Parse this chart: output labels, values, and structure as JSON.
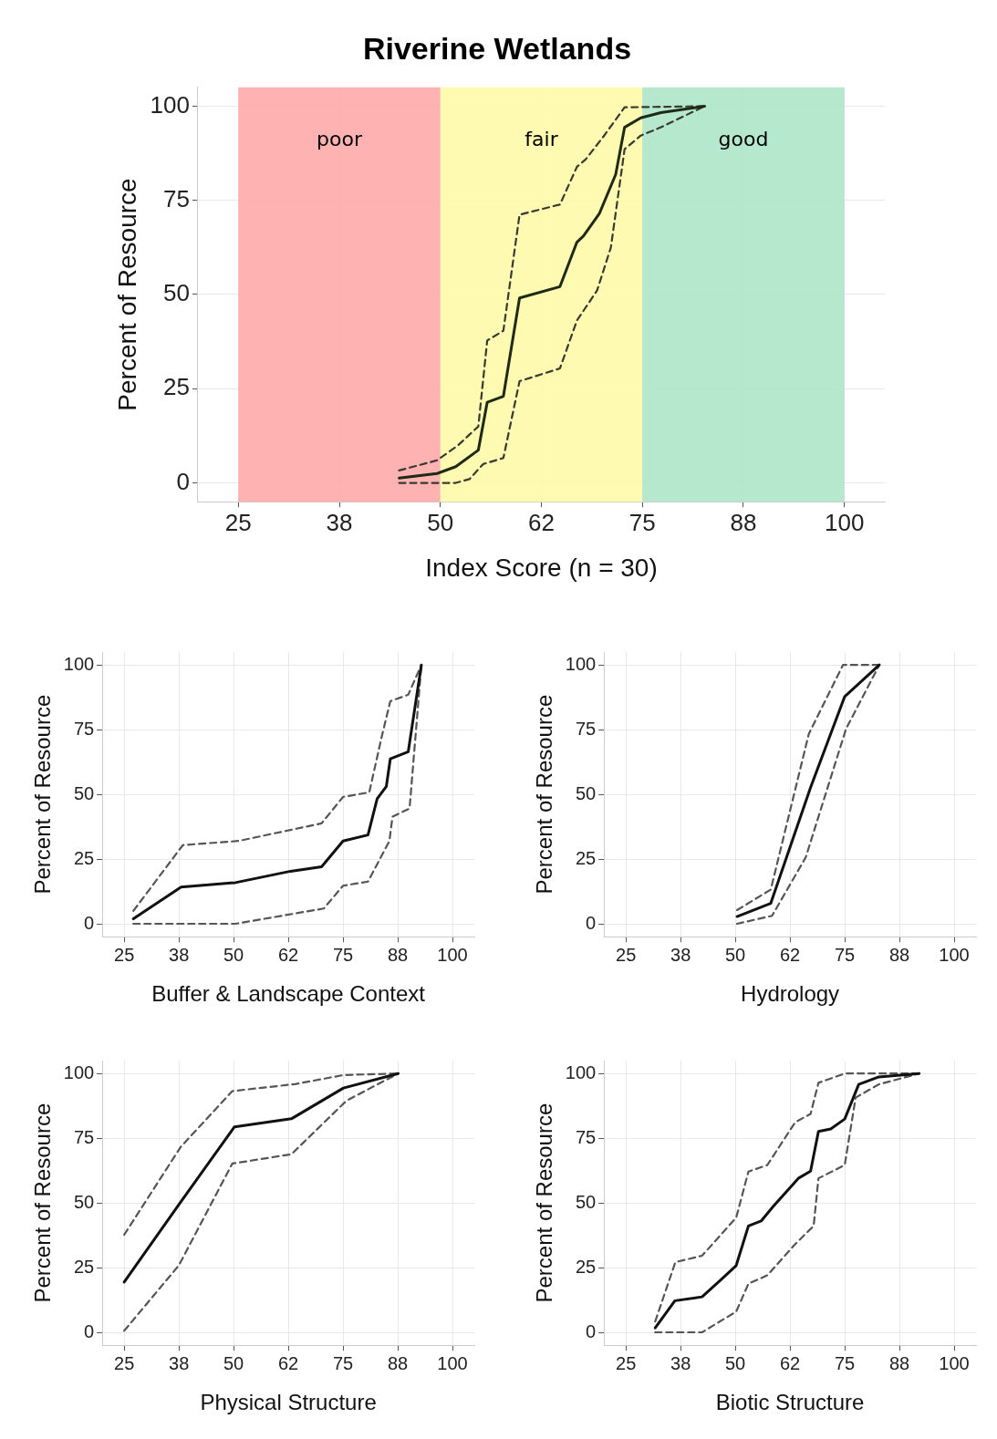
{
  "chart_data": [
    {
      "type": "line",
      "title": "Riverine Wetlands",
      "xlabel": "Index Score (n = 30)",
      "ylabel": "Percent of Resource",
      "xlim": [
        20,
        105
      ],
      "ylim": [
        -5,
        105
      ],
      "xticks": [
        25,
        {
          "value": 37.5,
          "label": "38"
        },
        50,
        {
          "value": 62.5,
          "label": "62"
        },
        75,
        {
          "value": 87.5,
          "label": "88"
        },
        100
      ],
      "yticks": [
        0,
        25,
        50,
        75,
        100
      ],
      "grid": true,
      "bands": [
        {
          "axis": "x",
          "from": 25,
          "to": 50,
          "label": "poor",
          "color": "#ffaaaa"
        },
        {
          "axis": "x",
          "from": 50,
          "to": 75,
          "label": "fair",
          "color": "#fffaaa"
        },
        {
          "axis": "x",
          "from": 75,
          "to": 100,
          "label": "good",
          "color": "#aee5c8"
        }
      ],
      "series": [
        {
          "color": "#1e2a14",
          "line_style": "solid",
          "x": [
            44.9,
            49.6,
            51.9,
            54.7,
            55.8,
            57.8,
            59.8,
            64.8,
            66.9,
            67.7,
            69.7,
            71.7,
            72.8,
            74.8,
            77.3,
            82.7
          ],
          "values": [
            1.3,
            2.5,
            4.3,
            8.7,
            21.4,
            23,
            49.1,
            52.1,
            63.9,
            65.5,
            71.6,
            81.9,
            94.4,
            96.9,
            98.3,
            100
          ]
        },
        {
          "color": "#3a3a30",
          "line_style": "dashed",
          "x": [
            44.9,
            49.6,
            52.2,
            54.7,
            55.8,
            57.8,
            59.8,
            64.8,
            66.9,
            68.0,
            70.2,
            72.8,
            82.7
          ],
          "values": [
            3.3,
            6,
            10,
            15,
            37.8,
            40.4,
            71.2,
            73.9,
            83.9,
            85.9,
            92,
            99.7,
            100
          ]
        },
        {
          "color": "#3a3a30",
          "line_style": "dashed",
          "x": [
            44.9,
            51.9,
            53.6,
            55.3,
            57.8,
            59.8,
            64.8,
            66.9,
            69.4,
            71.1,
            72.8,
            74.8,
            77.3,
            82.7
          ],
          "values": [
            0,
            0,
            1,
            5,
            6.6,
            27,
            30.4,
            43.1,
            51.1,
            62.5,
            88.6,
            92.2,
            94.4,
            100
          ]
        }
      ]
    },
    {
      "type": "line",
      "xlabel": "Buffer & Landscape Context",
      "ylabel": "Percent of Resource",
      "xlim": [
        20,
        105
      ],
      "ylim": [
        -5,
        105
      ],
      "xticks": [
        25,
        {
          "value": 37.5,
          "label": "38"
        },
        50,
        {
          "value": 62.5,
          "label": "62"
        },
        75,
        {
          "value": 87.5,
          "label": "88"
        },
        100
      ],
      "yticks": [
        0,
        25,
        50,
        75,
        100
      ],
      "grid": true,
      "series": [
        {
          "color": "#111111",
          "line_style": "solid",
          "x": [
            27.1,
            38.0,
            50.4,
            63.0,
            70.1,
            75.0,
            80.7,
            82.8,
            84.9,
            85.8,
            89.9,
            92.9
          ],
          "values": [
            1.9,
            14.2,
            15.9,
            20.3,
            22,
            32,
            34.3,
            48.3,
            53.1,
            63.7,
            66.5,
            100
          ]
        },
        {
          "color": "#555555",
          "line_style": "dashed",
          "x": [
            27.1,
            38.4,
            51.1,
            70.1,
            75.0,
            81.0,
            83.8,
            85.8,
            89.9,
            92.9
          ],
          "values": [
            5,
            30.4,
            32,
            38.8,
            49,
            50.8,
            72,
            86,
            88.5,
            100
          ]
        },
        {
          "color": "#555555",
          "line_style": "dashed",
          "x": [
            27.1,
            50.4,
            70.6,
            75.0,
            80.7,
            85.6,
            86.3,
            90.2,
            92.9
          ],
          "values": [
            0,
            0,
            5.9,
            14.7,
            16.3,
            32,
            41.4,
            44.5,
            100
          ]
        }
      ]
    },
    {
      "type": "line",
      "xlabel": "Hydrology",
      "ylabel": "Percent of Resource",
      "xlim": [
        20,
        105
      ],
      "ylim": [
        -5,
        105
      ],
      "xticks": [
        25,
        {
          "value": 37.5,
          "label": "38"
        },
        50,
        {
          "value": 62.5,
          "label": "62"
        },
        75,
        {
          "value": 87.5,
          "label": "88"
        },
        100
      ],
      "yticks": [
        0,
        25,
        50,
        75,
        100
      ],
      "grid": true,
      "series": [
        {
          "color": "#111111",
          "line_style": "solid",
          "x": [
            50.4,
            58.1,
            67.2,
            75.0,
            82.9
          ],
          "values": [
            2.8,
            7.9,
            52.7,
            87.8,
            100
          ]
        },
        {
          "color": "#555555",
          "line_style": "dashed",
          "x": [
            50.4,
            58.1,
            66.8,
            74.6,
            82.9
          ],
          "values": [
            5.3,
            13.2,
            73.4,
            100,
            100
          ]
        },
        {
          "color": "#555555",
          "line_style": "dashed",
          "x": [
            50.4,
            58.4,
            66.1,
            75.3,
            82.9
          ],
          "values": [
            0,
            3.1,
            25.7,
            75.3,
            100
          ]
        }
      ]
    },
    {
      "type": "line",
      "xlabel": "Physical Structure",
      "ylabel": "Percent of Resource",
      "xlim": [
        20,
        105
      ],
      "ylim": [
        -5,
        105
      ],
      "xticks": [
        25,
        {
          "value": 37.5,
          "label": "38"
        },
        50,
        {
          "value": 62.5,
          "label": "62"
        },
        75,
        {
          "value": 87.5,
          "label": "88"
        },
        100
      ],
      "yticks": [
        0,
        25,
        50,
        75,
        100
      ],
      "grid": true,
      "series": [
        {
          "color": "#111111",
          "line_style": "solid",
          "x": [
            25,
            37.5,
            50.2,
            63.2,
            75.1,
            87.6
          ],
          "values": [
            19.4,
            49.4,
            79.4,
            82.5,
            94.4,
            100
          ]
        },
        {
          "color": "#555555",
          "line_style": "dashed",
          "x": [
            25,
            37.9,
            49.7,
            64,
            75.1,
            87.6
          ],
          "values": [
            37.7,
            71.6,
            93.2,
            95.9,
            99.4,
            100
          ]
        },
        {
          "color": "#555555",
          "line_style": "dashed",
          "x": [
            25,
            37.5,
            49.7,
            63.2,
            75.8,
            87.6
          ],
          "values": [
            0.6,
            25.9,
            65.2,
            68.8,
            89.5,
            100
          ]
        }
      ]
    },
    {
      "type": "line",
      "xlabel": "Biotic Structure",
      "ylabel": "Percent of Resource",
      "xlim": [
        20,
        105
      ],
      "ylim": [
        -5,
        105
      ],
      "xticks": [
        25,
        {
          "value": 37.5,
          "label": "38"
        },
        50,
        {
          "value": 62.5,
          "label": "62"
        },
        75,
        {
          "value": 87.5,
          "label": "88"
        },
        100
      ],
      "yticks": [
        0,
        25,
        50,
        75,
        100
      ],
      "grid": true,
      "series": [
        {
          "color": "#111111",
          "line_style": "solid",
          "x": [
            31.7,
            36.2,
            42.4,
            46.6,
            50.2,
            53.0,
            55.9,
            58.7,
            64.4,
            67.2,
            69.0,
            71.8,
            75.0,
            78.2,
            82.8,
            92.0
          ],
          "values": [
            1.7,
            12.2,
            13.7,
            20.1,
            25.8,
            41.1,
            43,
            48.7,
            59.5,
            62.3,
            77.6,
            78.6,
            82.4,
            95.8,
            98.7,
            100
          ]
        },
        {
          "color": "#555555",
          "line_style": "dashed",
          "x": [
            31.7,
            36.3,
            42.4,
            50.2,
            53.0,
            57.3,
            63.7,
            67.2,
            69.0,
            75.0,
            92.0
          ],
          "values": [
            4.2,
            27.1,
            29.6,
            44.3,
            62.1,
            64.6,
            81.2,
            84.4,
            96.4,
            100,
            100
          ]
        },
        {
          "color": "#555555",
          "line_style": "dashed",
          "x": [
            31.7,
            42.4,
            50.2,
            53.0,
            57.3,
            63.7,
            67.9,
            69.0,
            75.0,
            77.5,
            82.8,
            92.0
          ],
          "values": [
            0,
            0,
            8,
            18.8,
            22,
            34.1,
            41.1,
            59.5,
            64.6,
            90.7,
            95.8,
            100
          ]
        }
      ]
    }
  ]
}
